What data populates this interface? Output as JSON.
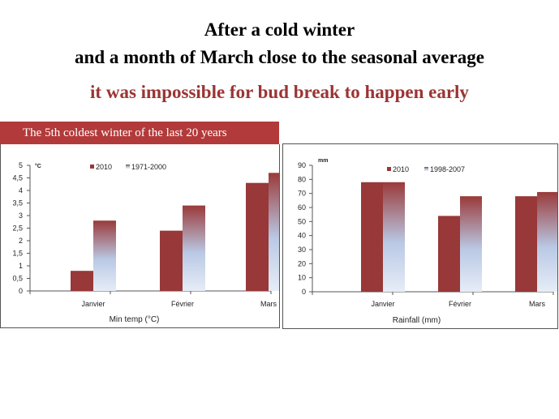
{
  "headline": {
    "line1": "After a cold winter",
    "line2": "and a month of March close to the seasonal average",
    "line3": "it was impossible for bud break to happen early"
  },
  "banner": "The 5th coldest winter of the last 20 years",
  "colors": {
    "bar_recent": "#983838",
    "bar_average_top": "#9a3a3a",
    "bar_average_bottom": "#e6edf7",
    "banner": "#b33a3a",
    "subtitle": "#9b3434"
  },
  "chart_data": [
    {
      "type": "bar",
      "unit_label": "°C",
      "xlabel": "Min temp (°C)",
      "categories": [
        "Janvier",
        "Février",
        "Mars"
      ],
      "series": [
        {
          "name": "2010",
          "values": [
            0.8,
            2.4,
            4.3
          ]
        },
        {
          "name": "1971-2000",
          "values": [
            2.8,
            3.4,
            4.7
          ]
        }
      ],
      "ylim": [
        0,
        5
      ],
      "yticks": [
        "0",
        "0,5",
        "1",
        "1,5",
        "2",
        "2,5",
        "3",
        "3,5",
        "4",
        "4,5",
        "5"
      ],
      "grid": false,
      "legend": "top"
    },
    {
      "type": "bar",
      "unit_label": "mm",
      "xlabel": "Rainfall (mm)",
      "categories": [
        "Janvier",
        "Février",
        "Mars"
      ],
      "series": [
        {
          "name": "2010",
          "values": [
            78,
            54,
            68
          ]
        },
        {
          "name": "1998-2007",
          "values": [
            78,
            68,
            71
          ]
        }
      ],
      "ylim": [
        0,
        90
      ],
      "yticks": [
        "0",
        "10",
        "20",
        "30",
        "40",
        "50",
        "60",
        "70",
        "80",
        "90"
      ],
      "grid": false,
      "legend": "top"
    }
  ]
}
